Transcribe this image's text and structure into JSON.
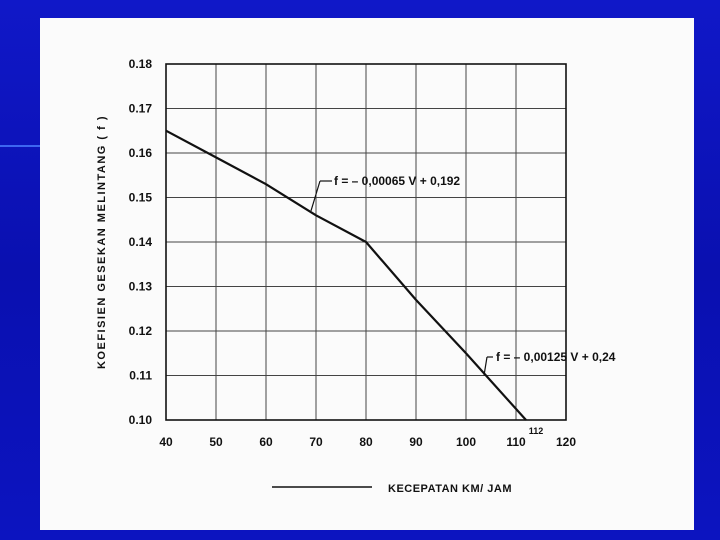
{
  "chart_data": {
    "type": "line",
    "title": "",
    "xlabel": "KECEPATAN  KM/ JAM",
    "ylabel": "KOEFISIEN  GESEKAN  MELINTANG  ( f )",
    "xlim": [
      40,
      120
    ],
    "ylim": [
      0.1,
      0.18
    ],
    "x_ticks": [
      "40",
      "50",
      "60",
      "70",
      "80",
      "90",
      "100",
      "110",
      "120"
    ],
    "y_ticks": [
      "0.10",
      "0.11",
      "0.12",
      "0.13",
      "0.14",
      "0.15",
      "0.16",
      "0.17",
      "0.18"
    ],
    "grid": true,
    "series": [
      {
        "points": [
          {
            "x": 40,
            "y": 0.165
          },
          {
            "x": 50,
            "y": 0.159
          },
          {
            "x": 60,
            "y": 0.153
          },
          {
            "x": 70,
            "y": 0.146
          },
          {
            "x": 80,
            "y": 0.14
          },
          {
            "x": 90,
            "y": 0.127
          },
          {
            "x": 100,
            "y": 0.115
          },
          {
            "x": 112,
            "y": 0.1
          }
        ]
      }
    ],
    "annotations": [
      {
        "text": "f = – 0,00065 V + 0,192",
        "x": 69,
        "y": 0.147
      },
      {
        "text": "f = – 0,00125 V + 0,24",
        "x": 104,
        "y": 0.11
      },
      {
        "text": "112",
        "x": 112,
        "y": 0.1
      }
    ],
    "legend": {
      "placement": "bottom"
    }
  }
}
